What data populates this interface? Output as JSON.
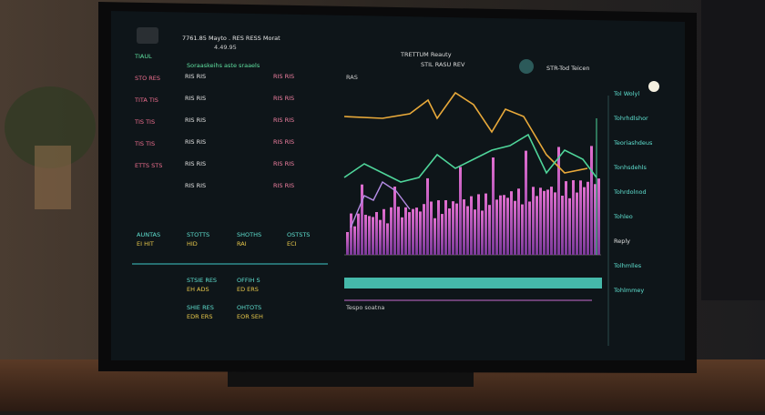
{
  "header": {
    "title": "7761.85 Mayto . RES RESS Morat",
    "subtitle": "4.49.95",
    "center_title": "TRETTUM Reauty",
    "center_subtitle": "STIL RASU REV",
    "right_title": "STR-Tod Teicen"
  },
  "left_labels": [
    "TIAUL",
    "STO RES",
    "TITA TIS",
    "TIS TIS",
    "TIS TIS",
    "ETTS STS"
  ],
  "table": {
    "header": "Soraaskeihs aste sraaels",
    "rows": [
      [
        "RIS RIS",
        "RIS RIS"
      ],
      [
        "RIS RIS",
        "RIS RIS"
      ],
      [
        "RIS RIS",
        "RIS RIS"
      ],
      [
        "RIS RIS",
        "RIS RIS"
      ],
      [
        "RIS RIS",
        "RIS RIS"
      ],
      [
        "RIS RIS",
        "RIS RIS"
      ]
    ]
  },
  "summary": [
    {
      "label": "AUNTAS",
      "value": "EI HIT"
    },
    {
      "label": "STOTTS",
      "value": "HID"
    },
    {
      "label": "SHOTHS",
      "value": "RAI"
    },
    {
      "label": "OSTSTS",
      "value": "ECI"
    }
  ],
  "stats": [
    {
      "label": "STSIE RES",
      "value": "EH ADS"
    },
    {
      "label": "OFFIH S",
      "value": "ED ERS"
    },
    {
      "label": "SHIE RES",
      "value": "EDR ERS"
    },
    {
      "label": "OHTOTS",
      "value": "EOR SEH"
    }
  ],
  "chart": {
    "legend": "RAS",
    "caption": "Tespo soatna"
  },
  "side_list": [
    "Tol Wolyl",
    "Tohrhdlshor",
    "Teoriashdeus",
    "Tonhsdehls",
    "Tohrdolnod",
    "Tohleo",
    "Reply",
    "Tolhmlles",
    "Tohlmmey"
  ]
}
